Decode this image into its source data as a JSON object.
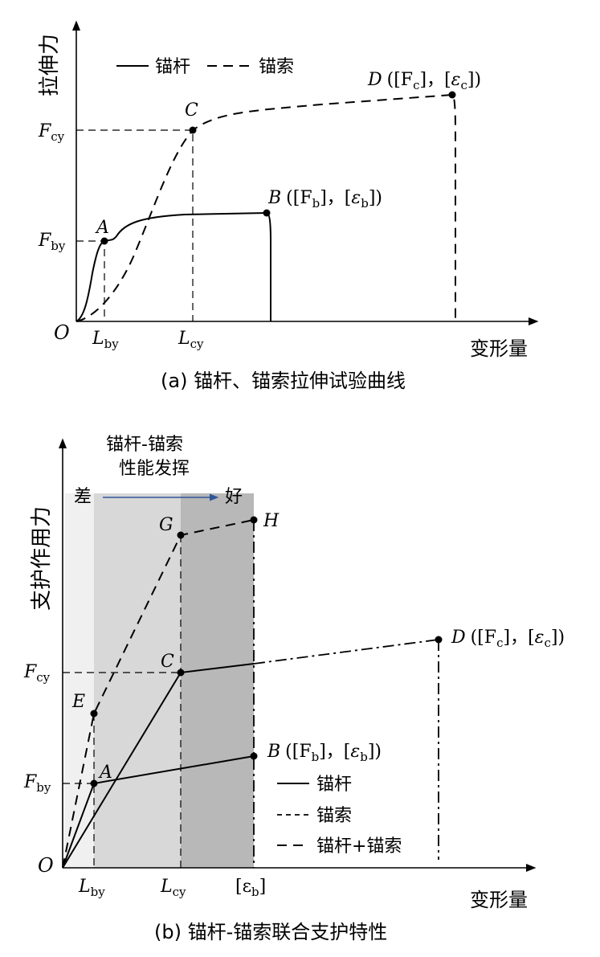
{
  "chart_data": [
    {
      "type": "line",
      "caption": "(a) 锚杆、锚索拉伸试验曲线",
      "ylabel": "拉伸力",
      "xlabel": "变形量",
      "origin_label": "O",
      "legend": [
        {
          "label": "锚杆",
          "style": "solid"
        },
        {
          "label": "锚索",
          "style": "dashed"
        }
      ],
      "x_ticks": [
        {
          "label": "L",
          "sub": "by"
        },
        {
          "label": "L",
          "sub": "cy"
        }
      ],
      "y_ticks": [
        {
          "label": "F",
          "sub": "by"
        },
        {
          "label": "F",
          "sub": "cy"
        }
      ],
      "points": [
        {
          "name": "A",
          "text": ""
        },
        {
          "name": "B",
          "text": "([F",
          "sub1": "b",
          "mid": "]，[",
          "eps": "ε",
          "sub2": "b",
          "end": "])"
        },
        {
          "name": "C",
          "text": ""
        },
        {
          "name": "D",
          "text": "([F",
          "sub1": "c",
          "mid": "]，[",
          "eps": "ε",
          "sub2": "c",
          "end": "])"
        }
      ]
    },
    {
      "type": "line",
      "caption": "(b) 锚杆-锚索联合支护特性",
      "ylabel": "支护作用力",
      "xlabel": "变形量",
      "origin_label": "O",
      "performance": {
        "title_line1": "锚杆-锚索",
        "title_line2": "性能发挥",
        "left": "差",
        "right": "好"
      },
      "legend": [
        {
          "label": "锚杆",
          "style": "solid"
        },
        {
          "label": "锚索",
          "style": "short-dashed"
        },
        {
          "label": "锚杆+锚索",
          "style": "long-dashed"
        }
      ],
      "x_ticks": [
        {
          "label": "L",
          "sub": "by"
        },
        {
          "label": "L",
          "sub": "cy"
        },
        {
          "label": "[ε",
          "sub": "b",
          "end": "]"
        }
      ],
      "y_ticks": [
        {
          "label": "F",
          "sub": "by"
        },
        {
          "label": "F",
          "sub": "cy"
        }
      ],
      "points": [
        {
          "name": "A",
          "text": ""
        },
        {
          "name": "B",
          "text": "([F",
          "sub1": "b",
          "mid": "]，[",
          "eps": "ε",
          "sub2": "b",
          "end": "])"
        },
        {
          "name": "C",
          "text": ""
        },
        {
          "name": "D",
          "text": "([F",
          "sub1": "c",
          "mid": "]，[",
          "eps": "ε",
          "sub2": "c",
          "end": "])"
        },
        {
          "name": "E",
          "text": ""
        },
        {
          "name": "G",
          "text": ""
        },
        {
          "name": "H",
          "text": ""
        }
      ],
      "zones_shade": [
        "#f0f0f0",
        "#d8d8d8",
        "#b8b8b8"
      ],
      "arrow_color": "#2f5597"
    }
  ]
}
